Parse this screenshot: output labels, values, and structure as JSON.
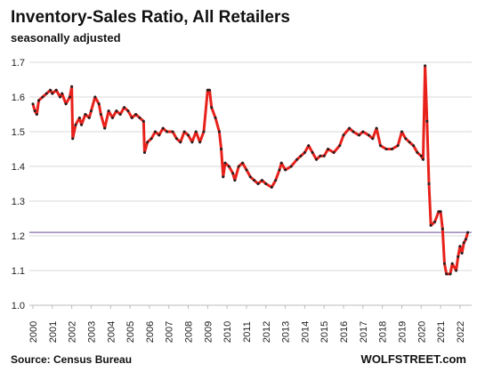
{
  "chart_data": {
    "type": "line",
    "title": "Inventory-Sales Ratio, All Retailers",
    "subtitle": "seasonally adjusted",
    "source": "Source: Census Bureau",
    "brand": "WOLFSTREET.com",
    "x": [
      2000.0,
      2000.1,
      2000.2,
      2000.3,
      2000.5,
      2000.7,
      2000.9,
      2001.0,
      2001.2,
      2001.4,
      2001.5,
      2001.7,
      2001.9,
      2002.0,
      2002.05,
      2002.2,
      2002.4,
      2002.5,
      2002.7,
      2002.9,
      2003.0,
      2003.2,
      2003.4,
      2003.5,
      2003.7,
      2003.9,
      2004.1,
      2004.3,
      2004.5,
      2004.7,
      2004.9,
      2005.1,
      2005.3,
      2005.5,
      2005.7,
      2005.75,
      2005.9,
      2006.1,
      2006.3,
      2006.5,
      2006.7,
      2006.9,
      2007.2,
      2007.4,
      2007.6,
      2007.8,
      2008.0,
      2008.2,
      2008.4,
      2008.6,
      2008.8,
      2009.0,
      2009.1,
      2009.2,
      2009.4,
      2009.6,
      2009.7,
      2009.8,
      2009.9,
      2010.1,
      2010.3,
      2010.4,
      2010.6,
      2010.8,
      2011.0,
      2011.2,
      2011.4,
      2011.6,
      2011.8,
      2012.0,
      2012.3,
      2012.5,
      2012.7,
      2012.8,
      2013.0,
      2013.3,
      2013.6,
      2013.8,
      2014.0,
      2014.2,
      2014.4,
      2014.6,
      2014.8,
      2015.0,
      2015.2,
      2015.5,
      2015.8,
      2016.0,
      2016.3,
      2016.5,
      2016.8,
      2017.0,
      2017.3,
      2017.5,
      2017.7,
      2017.9,
      2018.2,
      2018.5,
      2018.8,
      2019.0,
      2019.2,
      2019.4,
      2019.6,
      2019.8,
      2020.0,
      2020.1,
      2020.2,
      2020.3,
      2020.4,
      2020.5,
      2020.7,
      2020.9,
      2021.0,
      2021.1,
      2021.2,
      2021.3,
      2021.5,
      2021.6,
      2021.8,
      2021.9,
      2022.0,
      2022.1,
      2022.2,
      2022.3,
      2022.4
    ],
    "series": [
      {
        "color": "#e8211b",
        "marker_color": "#222222",
        "values": [
          1.58,
          1.56,
          1.55,
          1.59,
          1.6,
          1.61,
          1.62,
          1.61,
          1.62,
          1.6,
          1.61,
          1.58,
          1.6,
          1.63,
          1.48,
          1.52,
          1.54,
          1.52,
          1.55,
          1.54,
          1.56,
          1.6,
          1.58,
          1.55,
          1.51,
          1.56,
          1.54,
          1.56,
          1.55,
          1.57,
          1.56,
          1.54,
          1.55,
          1.54,
          1.53,
          1.44,
          1.47,
          1.48,
          1.5,
          1.49,
          1.51,
          1.5,
          1.5,
          1.48,
          1.47,
          1.5,
          1.49,
          1.47,
          1.5,
          1.47,
          1.5,
          1.62,
          1.62,
          1.57,
          1.54,
          1.5,
          1.45,
          1.37,
          1.41,
          1.4,
          1.38,
          1.36,
          1.4,
          1.41,
          1.39,
          1.37,
          1.36,
          1.35,
          1.36,
          1.35,
          1.34,
          1.36,
          1.39,
          1.41,
          1.39,
          1.4,
          1.42,
          1.43,
          1.44,
          1.46,
          1.44,
          1.42,
          1.43,
          1.43,
          1.45,
          1.44,
          1.46,
          1.49,
          1.51,
          1.5,
          1.49,
          1.5,
          1.49,
          1.48,
          1.51,
          1.46,
          1.45,
          1.45,
          1.46,
          1.5,
          1.48,
          1.47,
          1.46,
          1.44,
          1.43,
          1.42,
          1.69,
          1.53,
          1.35,
          1.23,
          1.24,
          1.27,
          1.27,
          1.22,
          1.12,
          1.09,
          1.09,
          1.12,
          1.1,
          1.14,
          1.17,
          1.15,
          1.18,
          1.19,
          1.21
        ]
      }
    ],
    "reference_line": 1.21,
    "reference_color": "#8a6fa8",
    "xlim": [
      2000,
      2022.6
    ],
    "xticks": [
      2000,
      2001,
      2002,
      2003,
      2004,
      2005,
      2006,
      2007,
      2008,
      2009,
      2010,
      2011,
      2012,
      2013,
      2014,
      2015,
      2016,
      2017,
      2018,
      2019,
      2020,
      2021,
      2022
    ],
    "ylim": [
      1.0,
      1.7
    ],
    "yticks": [
      {
        "value": 1.0,
        "label": "1.0"
      },
      1.1,
      1.2,
      1.3,
      1.4,
      1.5,
      1.6,
      1.7
    ],
    "grid": true
  }
}
